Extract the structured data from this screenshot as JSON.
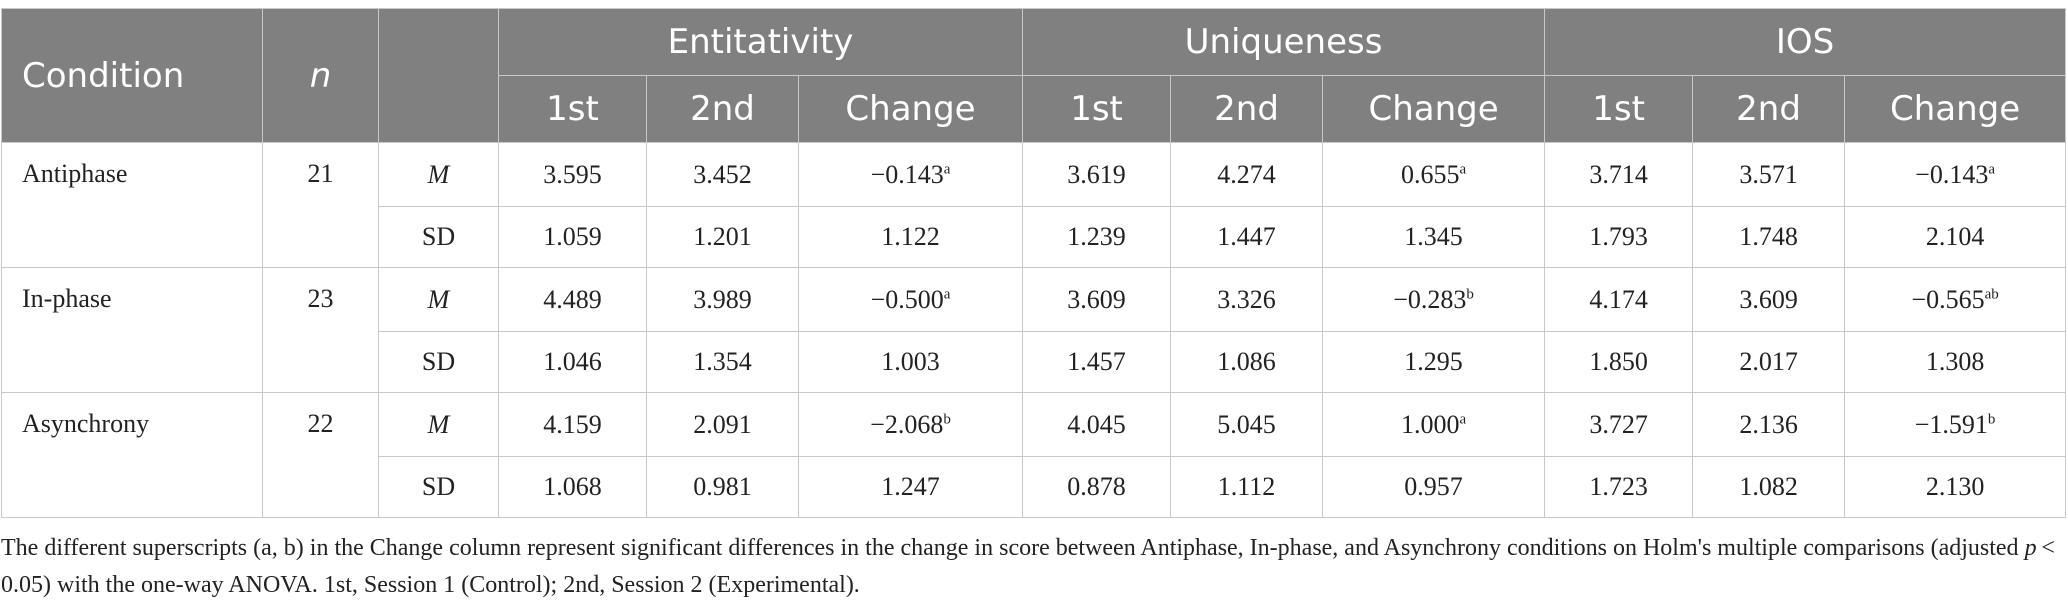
{
  "header": {
    "condition": "Condition",
    "n": "n",
    "stat": "",
    "groups": [
      "Entitativity",
      "Uniqueness",
      "IOS"
    ],
    "sub": [
      "1st",
      "2nd",
      "Change",
      "1st",
      "2nd",
      "Change",
      "1st",
      "2nd",
      "Change"
    ]
  },
  "rows": [
    {
      "condition": "Antiphase",
      "n": "21",
      "m_label": "M",
      "sd_label": "SD",
      "m": [
        {
          "v": "3.595",
          "s": ""
        },
        {
          "v": "3.452",
          "s": ""
        },
        {
          "v": "−0.143",
          "s": "a"
        },
        {
          "v": "3.619",
          "s": ""
        },
        {
          "v": "4.274",
          "s": ""
        },
        {
          "v": "0.655",
          "s": "a"
        },
        {
          "v": "3.714",
          "s": ""
        },
        {
          "v": "3.571",
          "s": ""
        },
        {
          "v": "−0.143",
          "s": "a"
        }
      ],
      "sd": [
        "1.059",
        "1.201",
        "1.122",
        "1.239",
        "1.447",
        "1.345",
        "1.793",
        "1.748",
        "2.104"
      ]
    },
    {
      "condition": "In-phase",
      "n": "23",
      "m_label": "M",
      "sd_label": "SD",
      "m": [
        {
          "v": "4.489",
          "s": ""
        },
        {
          "v": "3.989",
          "s": ""
        },
        {
          "v": "−0.500",
          "s": "a"
        },
        {
          "v": "3.609",
          "s": ""
        },
        {
          "v": "3.326",
          "s": ""
        },
        {
          "v": "−0.283",
          "s": "b"
        },
        {
          "v": "4.174",
          "s": ""
        },
        {
          "v": "3.609",
          "s": ""
        },
        {
          "v": "−0.565",
          "s": "ab"
        }
      ],
      "sd": [
        "1.046",
        "1.354",
        "1.003",
        "1.457",
        "1.086",
        "1.295",
        "1.850",
        "2.017",
        "1.308"
      ]
    },
    {
      "condition": "Asynchrony",
      "n": "22",
      "m_label": "M",
      "sd_label": "SD",
      "m": [
        {
          "v": "4.159",
          "s": ""
        },
        {
          "v": "2.091",
          "s": ""
        },
        {
          "v": "−2.068",
          "s": "b"
        },
        {
          "v": "4.045",
          "s": ""
        },
        {
          "v": "5.045",
          "s": ""
        },
        {
          "v": "1.000",
          "s": "a"
        },
        {
          "v": "3.727",
          "s": ""
        },
        {
          "v": "2.136",
          "s": ""
        },
        {
          "v": "−1.591",
          "s": "b"
        }
      ],
      "sd": [
        "1.068",
        "0.981",
        "1.247",
        "0.878",
        "1.112",
        "0.957",
        "1.723",
        "1.082",
        "2.130"
      ]
    }
  ],
  "note": "The different superscripts (a, b) in the Change column represent significant differences in the change in score between Antiphase, In-phase, and Asynchrony conditions on Holm's multiple comparisons (adjusted p < 0.05) with the one-way ANOVA. 1st, Session 1 (Control); 2nd, Session 2 (Experimental)."
}
